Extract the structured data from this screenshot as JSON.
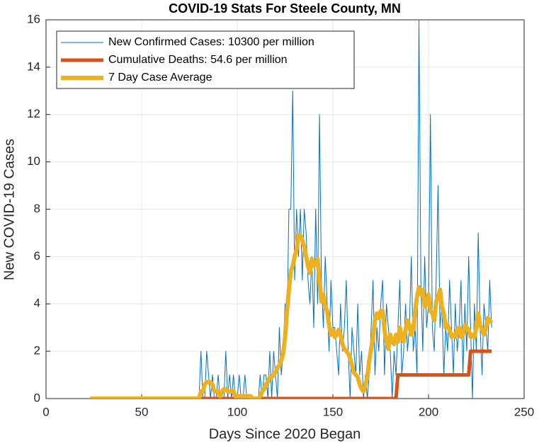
{
  "chart_data": {
    "type": "line",
    "title": "COVID-19 Stats For Steele County, MN",
    "xlabel": "Days Since 2020 Began",
    "ylabel": "New COVID-19 Cases",
    "x": [
      23,
      24,
      25,
      26,
      27,
      28,
      29,
      30,
      31,
      32,
      33,
      34,
      35,
      36,
      37,
      38,
      39,
      40,
      41,
      42,
      43,
      44,
      45,
      46,
      47,
      48,
      49,
      50,
      51,
      52,
      53,
      54,
      55,
      56,
      57,
      58,
      59,
      60,
      61,
      62,
      63,
      64,
      65,
      66,
      67,
      68,
      69,
      70,
      71,
      72,
      73,
      74,
      75,
      76,
      77,
      78,
      79,
      80,
      81,
      82,
      83,
      84,
      85,
      86,
      87,
      88,
      89,
      90,
      91,
      92,
      93,
      94,
      95,
      96,
      97,
      98,
      99,
      100,
      101,
      102,
      103,
      104,
      105,
      106,
      107,
      108,
      109,
      110,
      111,
      112,
      113,
      114,
      115,
      116,
      117,
      118,
      119,
      120,
      121,
      122,
      123,
      124,
      125,
      126,
      127,
      128,
      129,
      130,
      131,
      132,
      133,
      134,
      135,
      136,
      137,
      138,
      139,
      140,
      141,
      142,
      143,
      144,
      145,
      146,
      147,
      148,
      149,
      150,
      151,
      152,
      153,
      154,
      155,
      156,
      157,
      158,
      159,
      160,
      161,
      162,
      163,
      164,
      165,
      166,
      167,
      168,
      169,
      170,
      171,
      172,
      173,
      174,
      175,
      176,
      177,
      178,
      179,
      180,
      181,
      182,
      183,
      184,
      185,
      186,
      187,
      188,
      189,
      190,
      191,
      192,
      193,
      194,
      195,
      196,
      197,
      198,
      199,
      200,
      201,
      202,
      203,
      204,
      205,
      206,
      207,
      208,
      209,
      210,
      211,
      212,
      213,
      214,
      215,
      216,
      217,
      218,
      219,
      220,
      221,
      222,
      223,
      224,
      225,
      226,
      227,
      228,
      229,
      230,
      231,
      232,
      233
    ],
    "series": [
      {
        "name": "New Confirmed Cases: 10300 per million",
        "color": "#0072bd",
        "width": 1,
        "values": [
          0,
          0,
          0,
          0,
          0,
          0,
          0,
          0,
          0,
          0,
          0,
          0,
          0,
          0,
          0,
          0,
          0,
          0,
          0,
          0,
          0,
          0,
          0,
          0,
          0,
          0,
          0,
          0,
          0,
          0,
          0,
          0,
          0,
          0,
          0,
          0,
          0,
          0,
          0,
          0,
          0,
          0,
          0,
          0,
          0,
          0,
          0,
          0,
          0,
          0,
          0,
          0,
          0,
          0,
          0,
          0,
          0,
          0,
          2,
          0,
          0,
          2,
          1,
          0,
          1,
          0,
          0,
          1,
          0,
          0,
          0,
          2,
          0,
          1,
          0,
          1,
          0,
          0,
          1,
          0,
          0,
          1,
          0,
          0,
          0,
          0,
          0,
          0,
          0,
          1,
          0,
          1,
          1,
          0,
          2,
          0,
          2,
          1,
          0,
          3,
          1,
          2,
          4,
          3,
          8,
          8,
          13,
          5,
          8,
          6,
          8,
          5,
          8,
          7,
          5,
          4,
          6,
          3,
          8,
          4,
          12,
          5,
          3,
          6,
          4,
          2,
          5,
          3,
          3,
          2,
          1,
          4,
          2,
          3,
          5,
          2,
          0,
          3,
          2,
          1,
          4,
          1,
          2,
          0,
          1,
          0,
          1,
          3,
          5,
          1,
          3,
          2,
          4,
          5,
          1,
          4,
          3,
          2,
          0,
          2,
          1,
          3,
          5,
          1,
          2,
          4,
          2,
          3,
          6,
          2,
          3,
          1,
          16,
          5,
          2,
          6,
          3,
          4,
          12,
          3,
          2,
          5,
          9,
          3,
          4,
          1,
          3,
          2,
          5,
          3,
          1,
          4,
          2,
          3,
          5,
          1,
          4,
          2,
          6,
          3,
          0,
          4,
          2,
          7,
          3,
          1,
          4,
          3,
          2,
          5,
          3
        ]
      },
      {
        "name": "Cumulative Deaths: 54.6 per million",
        "color": "#d95319",
        "width": 5,
        "values": [
          0,
          0,
          0,
          0,
          0,
          0,
          0,
          0,
          0,
          0,
          0,
          0,
          0,
          0,
          0,
          0,
          0,
          0,
          0,
          0,
          0,
          0,
          0,
          0,
          0,
          0,
          0,
          0,
          0,
          0,
          0,
          0,
          0,
          0,
          0,
          0,
          0,
          0,
          0,
          0,
          0,
          0,
          0,
          0,
          0,
          0,
          0,
          0,
          0,
          0,
          0,
          0,
          0,
          0,
          0,
          0,
          0,
          0,
          0,
          0,
          0,
          0,
          0,
          0,
          0,
          0,
          0,
          0,
          0,
          0,
          0,
          0,
          0,
          0,
          0,
          0,
          0,
          0,
          0,
          0,
          0,
          0,
          0,
          0,
          0,
          0,
          0,
          0,
          0,
          0,
          0,
          0,
          0,
          0,
          0,
          0,
          0,
          0,
          0,
          0,
          0,
          0,
          0,
          0,
          0,
          0,
          0,
          0,
          0,
          0,
          0,
          0,
          0,
          0,
          0,
          0,
          0,
          0,
          0,
          0,
          0,
          0,
          0,
          0,
          0,
          0,
          0,
          0,
          0,
          0,
          0,
          0,
          0,
          0,
          0,
          0,
          0,
          0,
          0,
          0,
          0,
          0,
          0,
          0,
          0,
          0,
          0,
          0,
          0,
          0,
          0,
          0,
          0,
          0,
          0,
          0,
          0,
          0,
          0,
          0,
          0,
          1,
          1,
          1,
          1,
          1,
          1,
          1,
          1,
          1,
          1,
          1,
          1,
          1,
          1,
          1,
          1,
          1,
          1,
          1,
          1,
          1,
          1,
          1,
          1,
          1,
          1,
          1,
          1,
          1,
          1,
          1,
          1,
          1,
          1,
          1,
          1,
          1,
          1,
          2,
          2,
          2,
          2,
          2,
          2,
          2,
          2,
          2,
          2,
          2,
          2
        ]
      },
      {
        "name": "7 Day Case Average",
        "color": "#edb120",
        "width": 6,
        "values": [
          0,
          0,
          0,
          0,
          0,
          0,
          0,
          0,
          0,
          0,
          0,
          0,
          0,
          0,
          0,
          0,
          0,
          0,
          0,
          0,
          0,
          0,
          0,
          0,
          0,
          0,
          0,
          0,
          0,
          0,
          0,
          0,
          0,
          0,
          0,
          0,
          0,
          0,
          0,
          0,
          0,
          0,
          0,
          0,
          0,
          0,
          0,
          0,
          0,
          0,
          0,
          0,
          0,
          0,
          0,
          0,
          0,
          0,
          0.3,
          0.3,
          0.6,
          0.7,
          0.7,
          0.7,
          0.6,
          0.3,
          0.3,
          0.3,
          0.1,
          0.3,
          0.4,
          0.4,
          0.3,
          0.3,
          0.3,
          0.3,
          0.1,
          0.1,
          0.1,
          0.1,
          0.1,
          0.1,
          0.1,
          0.1,
          0.1,
          0,
          0,
          0,
          0,
          0.1,
          0.3,
          0.4,
          0.6,
          0.7,
          0.9,
          0.9,
          1.0,
          1.1,
          1.3,
          1.4,
          1.6,
          1.9,
          2.6,
          3.7,
          4.6,
          5.4,
          5.6,
          6.0,
          6.3,
          6.9,
          6.9,
          6.7,
          6.4,
          6.0,
          5.6,
          5.3,
          5.9,
          5.6,
          5.7,
          5.9,
          4.9,
          4.1,
          4.4,
          3.9,
          3.7,
          3.1,
          2.7,
          2.9,
          2.6,
          2.7,
          2.9,
          2.7,
          2.3,
          2.1,
          2.0,
          1.9,
          1.7,
          1.4,
          1.1,
          1.0,
          0.9,
          0.6,
          0.4,
          0.3,
          0.6,
          0.9,
          1.6,
          2.1,
          2.6,
          3.3,
          3.6,
          3.4,
          3.7,
          3.7,
          2.9,
          2.4,
          2.1,
          2.7,
          2.4,
          2.3,
          2.7,
          2.4,
          3.0,
          2.6,
          2.4,
          2.9,
          3.3,
          3.1,
          2.7,
          2.9,
          3.7,
          4.3,
          4.7,
          4.4,
          4.6,
          3.9,
          4.0,
          4.4,
          3.7,
          3.6,
          3.3,
          4.1,
          4.3,
          4.6,
          3.9,
          3.6,
          3.0,
          3.1,
          2.9,
          2.6,
          2.7,
          2.6,
          2.9,
          3.0,
          2.6,
          2.7,
          3.1,
          3.0,
          2.9,
          2.6,
          2.7,
          2.6,
          3.0,
          3.6,
          3.1,
          2.9,
          2.7,
          3.0,
          3.4,
          3.3,
          3.2
        ]
      }
    ],
    "xlim": [
      0,
      250
    ],
    "xticks": [
      0,
      50,
      100,
      150,
      200,
      250
    ],
    "ylim": [
      0,
      16
    ],
    "yticks": [
      0,
      2,
      4,
      6,
      8,
      10,
      12,
      14,
      16
    ],
    "grid": true,
    "legend": "northwest"
  }
}
